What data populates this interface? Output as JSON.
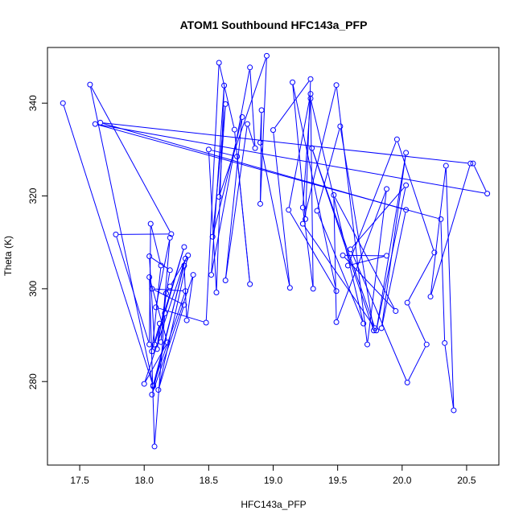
{
  "chart_data": {
    "type": "line",
    "title": "ATOM1 Southbound HFC143a_PFP",
    "xlabel": "HFC143a_PFP",
    "ylabel": "Theta (K)",
    "xlim": [
      17.25,
      20.75
    ],
    "ylim": [
      262,
      352
    ],
    "xticks": [
      "17.5",
      "18.0",
      "18.5",
      "19.0",
      "19.5",
      "20.0",
      "20.5"
    ],
    "xtick_values": [
      17.5,
      18.0,
      18.5,
      19.0,
      19.5,
      20.0,
      20.5
    ],
    "yticks": [
      "280",
      "300",
      "320",
      "340"
    ],
    "ytick_values": [
      280,
      300,
      320,
      340
    ],
    "grid": false,
    "legend": "none",
    "color": "#0000ff",
    "series": [
      {
        "points": [
          [
            17.37,
            340.0
          ],
          [
            18.07,
            279.0
          ],
          [
            17.58,
            344.0
          ],
          [
            18.21,
            311.8
          ],
          [
            17.78,
            311.7
          ],
          [
            18.04,
            288.0
          ],
          [
            18.05,
            314.0
          ],
          [
            18.13,
            305.0
          ],
          [
            18.06,
            286.5
          ],
          [
            18.12,
            292.5
          ],
          [
            18.1,
            287.0
          ],
          [
            18.2,
            304.0
          ],
          [
            18.04,
            307.0
          ],
          [
            18.08,
            288.0
          ],
          [
            18.31,
            309.0
          ],
          [
            18.16,
            294.7
          ],
          [
            18.08,
            266.0
          ],
          [
            18.04,
            302.5
          ],
          [
            18.18,
            288.4
          ],
          [
            18.0,
            279.5
          ],
          [
            18.32,
            306.5
          ],
          [
            18.06,
            277.2
          ],
          [
            18.38,
            303.0
          ],
          [
            18.33,
            293.2
          ],
          [
            18.31,
            305.0
          ],
          [
            18.07,
            279.2
          ],
          [
            18.32,
            299.5
          ],
          [
            18.06,
            300.0
          ],
          [
            18.31,
            296.5
          ],
          [
            18.11,
            278.2
          ],
          [
            18.34,
            307.2
          ],
          [
            18.2,
            300.5
          ],
          [
            18.17,
            299.0
          ],
          [
            18.13,
            288.5
          ],
          [
            18.2,
            311.0
          ],
          [
            18.09,
            296.0
          ],
          [
            18.48,
            292.7
          ],
          [
            18.58,
            348.7
          ],
          [
            18.7,
            334.3
          ],
          [
            18.82,
            301.0
          ],
          [
            18.72,
            328.5
          ],
          [
            18.5,
            330.0
          ],
          [
            18.56,
            299.2
          ],
          [
            18.62,
            343.8
          ],
          [
            18.52,
            303.0
          ],
          [
            18.82,
            347.7
          ],
          [
            18.86,
            330.3
          ],
          [
            18.8,
            335.5
          ],
          [
            18.63,
            301.8
          ],
          [
            18.76,
            337.0
          ],
          [
            18.53,
            311.2
          ],
          [
            18.63,
            339.8
          ],
          [
            18.58,
            319.8
          ],
          [
            18.95,
            350.2
          ],
          [
            18.9,
            318.3
          ],
          [
            18.91,
            338.5
          ],
          [
            18.9,
            331.5
          ],
          [
            19.13,
            300.2
          ],
          [
            19.0,
            334.2
          ],
          [
            19.29,
            345.2
          ],
          [
            19.25,
            315.0
          ],
          [
            19.15,
            344.5
          ],
          [
            19.49,
            299.5
          ],
          [
            19.12,
            317.0
          ],
          [
            19.29,
            342.0
          ],
          [
            19.31,
            300.0
          ],
          [
            19.23,
            317.5
          ],
          [
            19.29,
            341.0
          ],
          [
            19.7,
            292.5
          ],
          [
            19.34,
            316.8
          ],
          [
            19.52,
            335.0
          ],
          [
            19.78,
            291.0
          ],
          [
            19.3,
            330.3
          ],
          [
            19.79,
            291.5
          ],
          [
            19.23,
            314.0
          ],
          [
            19.49,
            343.9
          ],
          [
            19.73,
            288.0
          ],
          [
            19.88,
            321.5
          ],
          [
            19.49,
            292.8
          ],
          [
            19.47,
            320.2
          ],
          [
            19.95,
            295.2
          ],
          [
            19.54,
            307.2
          ],
          [
            19.88,
            307.1
          ],
          [
            19.58,
            305.0
          ],
          [
            19.96,
            332.2
          ],
          [
            20.25,
            307.8
          ],
          [
            20.04,
            297.0
          ],
          [
            20.19,
            288.0
          ],
          [
            20.04,
            279.8
          ],
          [
            19.6,
            308.5
          ],
          [
            20.03,
            322.3
          ],
          [
            19.8,
            291.0
          ],
          [
            20.03,
            329.3
          ],
          [
            19.84,
            291.5
          ],
          [
            20.03,
            317.0
          ],
          [
            17.66,
            335.8
          ],
          [
            20.53,
            327.0
          ],
          [
            20.22,
            298.3
          ],
          [
            20.34,
            326.5
          ],
          [
            20.4,
            273.8
          ],
          [
            20.33,
            288.3
          ],
          [
            20.3,
            315.0
          ],
          [
            17.62,
            335.5
          ],
          [
            20.66,
            320.5
          ],
          [
            20.55,
            327.0
          ]
        ]
      }
    ]
  }
}
